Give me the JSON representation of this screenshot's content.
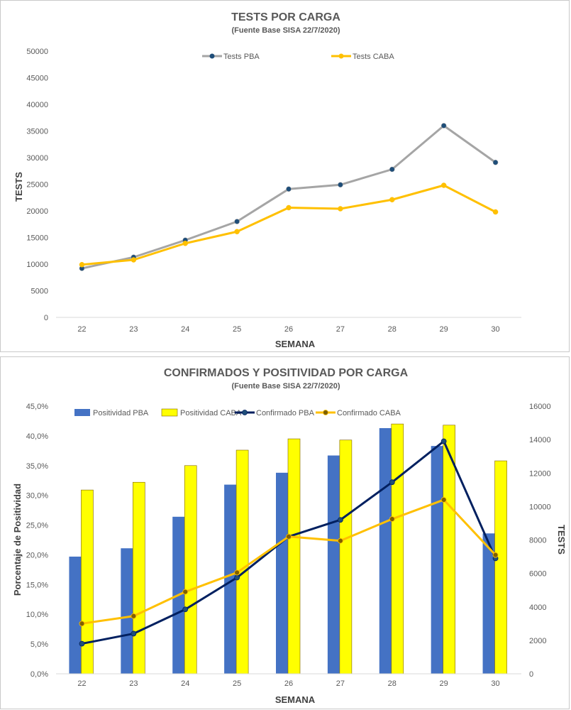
{
  "chart_data": [
    {
      "type": "line",
      "title": "TESTS POR CARGA",
      "subtitle": "(Fuente Base SISA 22/7/2020)",
      "xlabel": "SEMANA",
      "ylabel": "TESTS",
      "categories": [
        "22",
        "23",
        "24",
        "25",
        "26",
        "27",
        "28",
        "29",
        "30"
      ],
      "ylim": [
        0,
        50000
      ],
      "yticks": [
        "0",
        "5000",
        "10000",
        "15000",
        "20000",
        "25000",
        "30000",
        "35000",
        "40000",
        "45000",
        "50000"
      ],
      "grid": false,
      "legend": "top",
      "series": [
        {
          "name": "Tests PBA",
          "line_color": "#A5A5A5",
          "marker_color": "#1F4E79",
          "values": [
            9200,
            11300,
            14500,
            18000,
            24100,
            24900,
            27800,
            36000,
            29100
          ]
        },
        {
          "name": "Tests CABA",
          "line_color": "#FFC000",
          "marker_color": "#FFC000",
          "values": [
            9900,
            10800,
            13900,
            16100,
            20600,
            20400,
            22100,
            24800,
            19800
          ]
        }
      ]
    },
    {
      "type": "bar",
      "title": "CONFIRMADOS Y POSITIVIDAD POR CARGA",
      "subtitle": "(Fuente Base SISA 22/7/2020)",
      "xlabel": "SEMANA",
      "ylabel": "Porcentaje de Positividad",
      "y2label": "TESTS",
      "categories": [
        "22",
        "23",
        "24",
        "25",
        "26",
        "27",
        "28",
        "29",
        "30"
      ],
      "ylim": [
        0,
        45
      ],
      "y2lim": [
        0,
        16000
      ],
      "yticks": [
        "0,0%",
        "5,0%",
        "10,0%",
        "15,0%",
        "20,0%",
        "25,0%",
        "30,0%",
        "35,0%",
        "40,0%",
        "45,0%"
      ],
      "y2ticks": [
        "0",
        "2000",
        "4000",
        "6000",
        "8000",
        "10000",
        "12000",
        "14000",
        "16000"
      ],
      "grid": false,
      "legend": "top",
      "bar_series": [
        {
          "name": "Positividad PBA",
          "color": "#4472C4",
          "values": [
            19.7,
            21.1,
            26.4,
            31.8,
            33.8,
            36.7,
            41.3,
            38.3,
            23.6
          ]
        },
        {
          "name": "Positividad CABA",
          "color": "#FFFF00",
          "values": [
            30.9,
            32.2,
            35.0,
            37.6,
            39.5,
            39.3,
            42.0,
            41.8,
            35.8
          ]
        }
      ],
      "line_series": [
        {
          "name": "Confirmado PBA",
          "color": "#002060",
          "marker_color": "#1F4E79",
          "values": [
            1800,
            2400,
            3850,
            5750,
            8200,
            9200,
            11450,
            13900,
            6900
          ]
        },
        {
          "name": "Confirmado CABA",
          "color": "#FFC000",
          "marker_color": "#7F6000",
          "values": [
            3000,
            3450,
            4900,
            6050,
            8200,
            7950,
            9250,
            10400,
            7100
          ]
        }
      ]
    }
  ]
}
